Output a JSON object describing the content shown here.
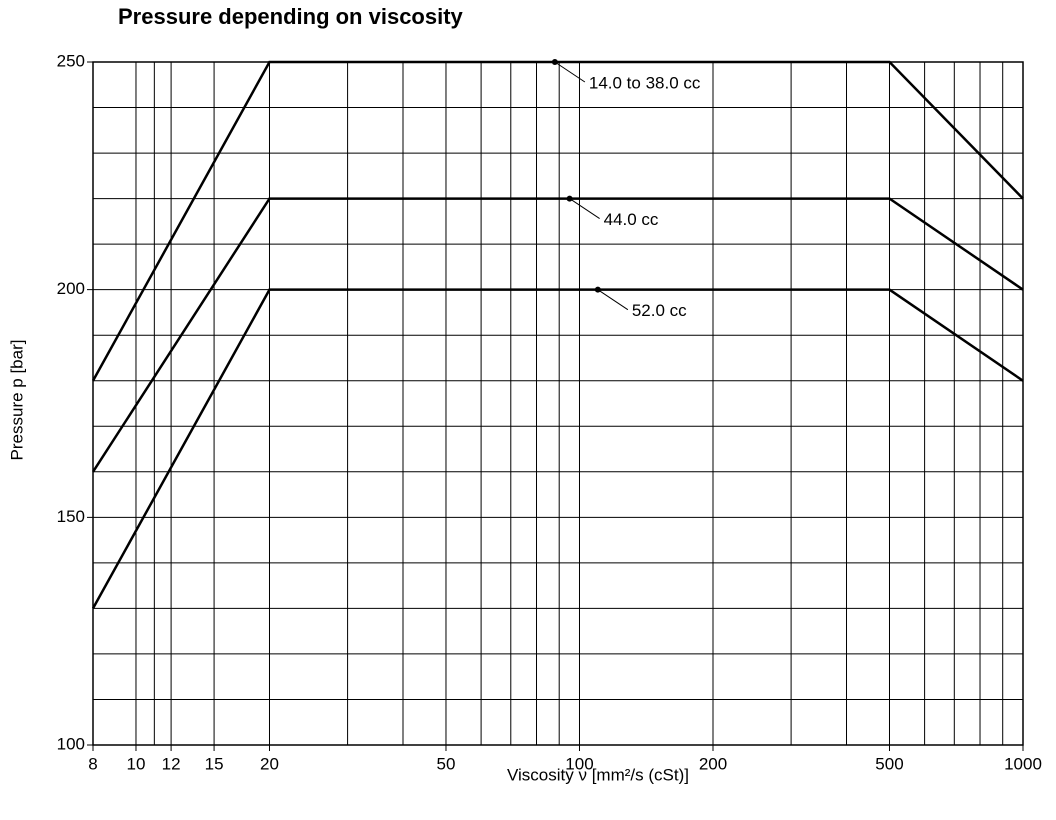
{
  "chart_data": {
    "type": "line",
    "title": "Pressure depending on viscosity",
    "x_label": "Viscosity ν [mm²/s (cSt)]",
    "y_label": "Pressure p [bar]",
    "x_scale": "log",
    "xlim": [
      8,
      1000
    ],
    "ylim": [
      100,
      250
    ],
    "xticks": [
      8,
      10,
      12,
      15,
      20,
      50,
      100,
      200,
      500,
      1000
    ],
    "xminor_ticks": [
      11,
      30,
      40,
      60,
      70,
      80,
      90,
      300,
      400,
      600,
      700,
      800,
      900
    ],
    "yticks": [
      100,
      150,
      200,
      250
    ],
    "yminor_ticks": [
      110,
      120,
      130,
      140,
      160,
      170,
      180,
      190,
      210,
      220,
      230,
      240
    ],
    "grid": true,
    "x": [
      8,
      20,
      500,
      1000
    ],
    "series": [
      {
        "name": "14.0  to  38.0 cc",
        "color": "#000000",
        "values": [
          180,
          250,
          250,
          220
        ]
      },
      {
        "name": "44.0 cc",
        "color": "#000000",
        "values": [
          160,
          220,
          220,
          200
        ]
      },
      {
        "name": "52.0 cc",
        "color": "#000000",
        "values": [
          130,
          200,
          200,
          180
        ]
      }
    ],
    "annotations": [
      {
        "text": "14.0  to  38.0 cc",
        "x": 88,
        "y": 250
      },
      {
        "text": "44.0 cc",
        "x": 95,
        "y": 220
      },
      {
        "text": "52.0 cc",
        "x": 110,
        "y": 200
      }
    ]
  }
}
